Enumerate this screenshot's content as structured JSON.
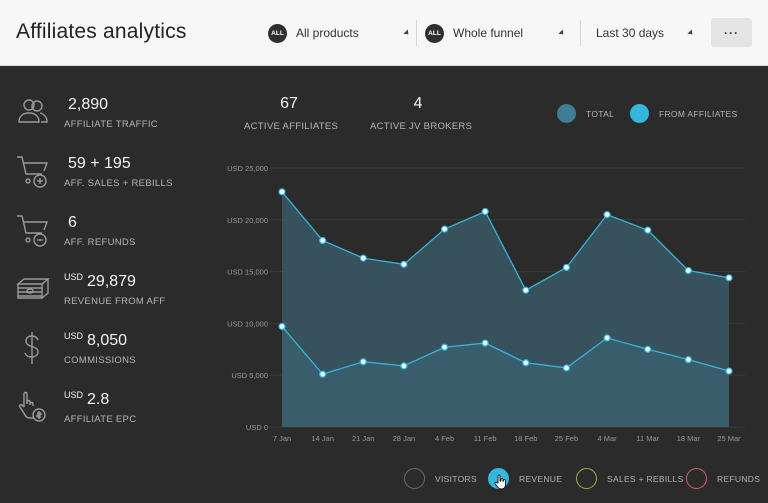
{
  "header": {
    "title": "Affiliates analytics",
    "product_filter": {
      "badge": "ALL",
      "value": "All products"
    },
    "funnel_filter": {
      "badge": "ALL",
      "value": "Whole funnel"
    },
    "date_filter": {
      "value": "Last 30 days"
    },
    "more_label": "···"
  },
  "stats": [
    {
      "icon": "people-icon",
      "unit": "",
      "value": "2,890",
      "label": "AFFILIATE TRAFFIC"
    },
    {
      "icon": "cart-plus-icon",
      "unit": "",
      "value": "59 + 195",
      "label": "AFF. SALES + REBILLS"
    },
    {
      "icon": "cart-minus-icon",
      "unit": "",
      "value": "6",
      "label": "AFF. REFUNDS"
    },
    {
      "icon": "cash-stack-icon",
      "unit": "USD",
      "value": "29,879",
      "label": "REVENUE FROM AFF"
    },
    {
      "icon": "dollar-sign-icon",
      "unit": "USD",
      "value": "8,050",
      "label": "COMMISSIONS"
    },
    {
      "icon": "hand-coin-icon",
      "unit": "USD",
      "value": "2.8",
      "label": "AFFILIATE EPC"
    }
  ],
  "top_stats": [
    {
      "value": "67",
      "label": "ACTIVE AFFILIATES"
    },
    {
      "value": "4",
      "label": "ACTIVE JV BROKERS"
    }
  ],
  "legend": [
    {
      "label": "TOTAL",
      "color": "#3f7d93"
    },
    {
      "label": "FROM AFFILIATES",
      "color": "#35b6dc"
    }
  ],
  "toggles": [
    {
      "label": "VISITORS",
      "color": "#6b6b6b",
      "active": false
    },
    {
      "label": "REVENUE",
      "color": "#35b6dc",
      "active": true
    },
    {
      "label": "SALES + REBILLS",
      "color": "#8fb34a",
      "active": false
    },
    {
      "label": "REFUNDS",
      "color": "#d9606a",
      "active": false
    }
  ],
  "colors": {
    "accent": "#35b6dc",
    "area": "#3a5866",
    "grid": "#3b3b3b"
  },
  "chart_data": {
    "type": "area",
    "x": [
      "7 Jan",
      "14 Jan",
      "21 Jan",
      "28 Jan",
      "4 Feb",
      "11 Feb",
      "18 Feb",
      "25 Feb",
      "4 Mar",
      "11 Mar",
      "18 Mar",
      "25 Mar"
    ],
    "yticks": [
      "USD 0",
      "USD 5,000",
      "USD 10,000",
      "USD 15,000",
      "USD 20,000",
      "USD 25,000"
    ],
    "ylim": [
      0,
      25000
    ],
    "series": [
      {
        "name": "TOTAL",
        "values": [
          22700,
          18000,
          16300,
          15700,
          19100,
          20800,
          13200,
          15400,
          20500,
          19000,
          15100,
          14400
        ]
      },
      {
        "name": "FROM AFFILIATES",
        "values": [
          9700,
          5100,
          6300,
          5900,
          7700,
          8100,
          6200,
          5700,
          8600,
          7500,
          6500,
          5400
        ]
      }
    ]
  }
}
